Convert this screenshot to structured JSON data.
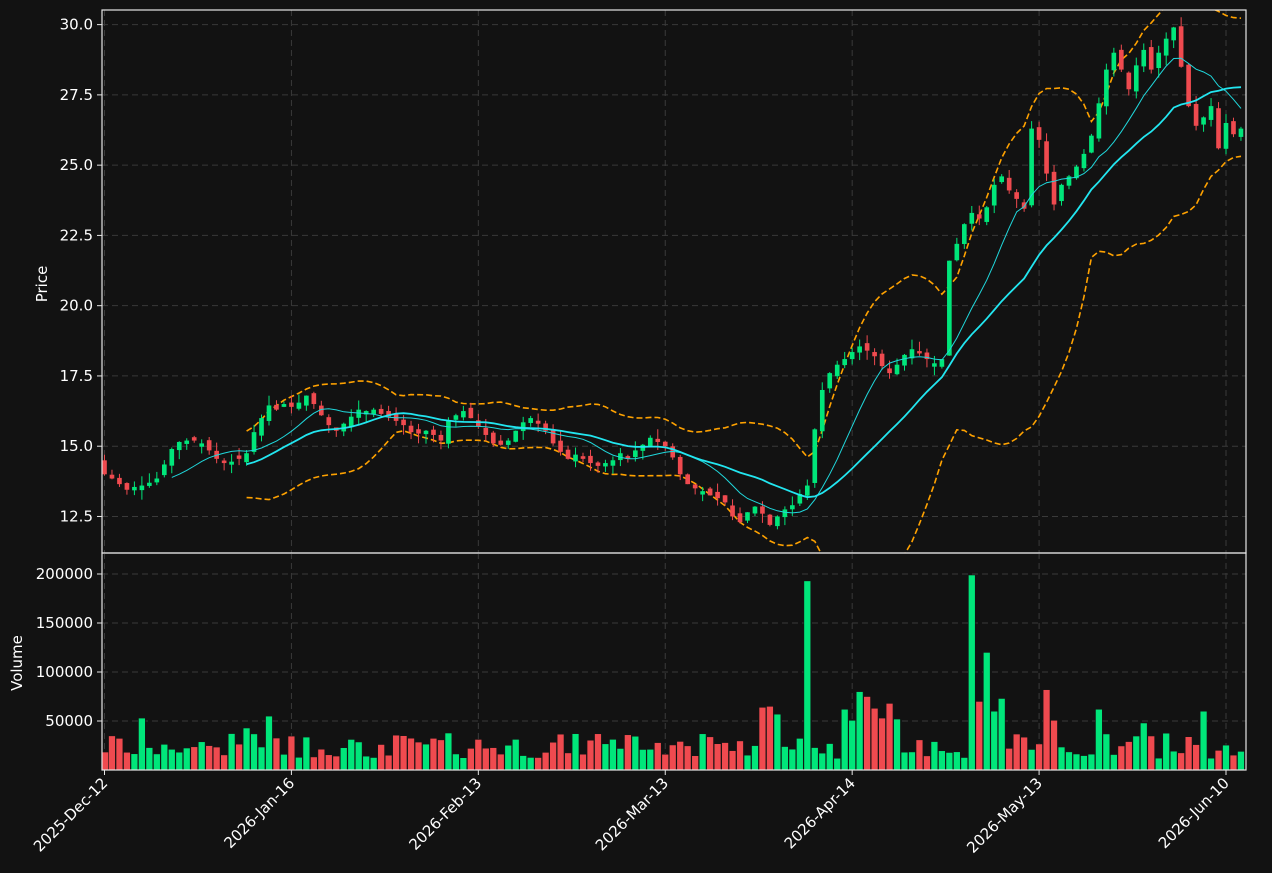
{
  "chart_data": {
    "type": "candlestick",
    "colors": {
      "background": "#121212",
      "up": "#00e67a",
      "down": "#ef4a4f",
      "ma_fast": "#20d8dc",
      "ma_slow": "#22e6f0",
      "bollinger": "#ffa200",
      "grid": "#3a3a3a",
      "text": "#ffffff"
    },
    "price_panel": {
      "ylabel": "Price",
      "ylim": [
        11.2,
        30.2
      ],
      "yticks": [
        "12.5",
        "15.0",
        "17.5",
        "20.0",
        "22.5",
        "25.0",
        "27.5",
        "30.0"
      ],
      "ytick_values": [
        12.5,
        15.0,
        17.5,
        20.0,
        22.5,
        25.0,
        27.5,
        30.0
      ],
      "grid": true
    },
    "volume_panel": {
      "ylabel": "Volume",
      "ylim": [
        0,
        200000
      ],
      "yticks": [
        "50000",
        "100000",
        "150000",
        "200000"
      ],
      "ytick_values": [
        50000,
        100000,
        150000,
        200000
      ],
      "grid": true
    },
    "xticks": [
      {
        "label": "2025-Dec-12",
        "index": 0
      },
      {
        "label": "2026-Jan-16",
        "index": 25
      },
      {
        "label": "2026-Feb-13",
        "index": 50
      },
      {
        "label": "2026-Mar-13",
        "index": 75
      },
      {
        "label": "2026-Apr-14",
        "index": 100
      },
      {
        "label": "2026-May-13",
        "index": 125
      },
      {
        "label": "2026-Jun-10",
        "index": 150
      }
    ],
    "num_bars": 154,
    "close": [
      14.0,
      13.85,
      13.65,
      13.45,
      13.55,
      13.6,
      13.7,
      13.85,
      14.35,
      14.9,
      15.15,
      15.2,
      15.2,
      15.1,
      14.85,
      14.55,
      14.4,
      14.45,
      14.55,
      14.75,
      15.5,
      16.0,
      16.45,
      16.3,
      16.5,
      16.4,
      16.55,
      16.8,
      16.5,
      16.1,
      15.75,
      15.55,
      15.8,
      16.05,
      16.3,
      16.25,
      16.3,
      16.15,
      16.05,
      15.9,
      15.75,
      15.5,
      15.45,
      15.55,
      15.4,
      15.2,
      15.9,
      16.1,
      16.25,
      16.0,
      15.7,
      15.4,
      15.1,
      15.05,
      15.2,
      15.55,
      15.85,
      16.0,
      15.8,
      15.55,
      15.1,
      14.8,
      14.55,
      14.7,
      14.55,
      14.4,
      14.3,
      14.4,
      14.5,
      14.75,
      14.55,
      14.85,
      15.05,
      15.3,
      15.15,
      15.0,
      14.6,
      14.0,
      13.65,
      13.5,
      13.4,
      13.25,
      13.15,
      13.0,
      12.5,
      12.3,
      12.65,
      12.85,
      12.6,
      12.2,
      12.5,
      12.75,
      12.9,
      13.3,
      13.6,
      15.6,
      17.0,
      17.6,
      17.9,
      18.1,
      18.35,
      18.55,
      18.4,
      18.2,
      17.85,
      17.6,
      17.9,
      18.25,
      18.45,
      18.3,
      18.1,
      17.95,
      18.1,
      21.6,
      22.2,
      22.9,
      23.3,
      23.1,
      23.5,
      24.3,
      24.6,
      24.1,
      23.8,
      23.45,
      26.3,
      25.9,
      24.7,
      23.6,
      24.3,
      24.6,
      24.95,
      25.4,
      26.05,
      27.2,
      28.4,
      29.0,
      28.4,
      27.7,
      28.55,
      29.1,
      28.4,
      29.0,
      29.5,
      29.9,
      28.5,
      27.1,
      26.4,
      26.7,
      27.1,
      25.6,
      26.5,
      26.1,
      26.3,
      26.6
    ]
  }
}
